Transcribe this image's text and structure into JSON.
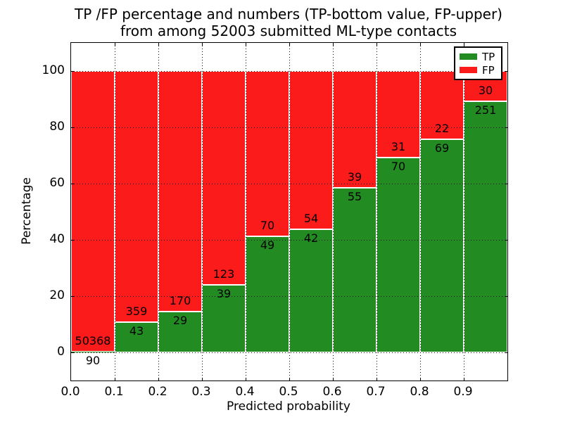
{
  "chart_data": {
    "type": "bar",
    "stacked": true,
    "units": "percent",
    "title": "TP /FP percentage and numbers (TP-bottom value, FP-upper)\nfrom among 52003 submitted ML-type contacts",
    "title_lines": [
      "TP /FP percentage and numbers (TP-bottom value, FP-upper)",
      "from among 52003 submitted ML-type contacts"
    ],
    "xlabel": "Predicted probability",
    "ylabel": "Percentage",
    "xlim": [
      0.0,
      1.0
    ],
    "ylim": [
      -10,
      110
    ],
    "x_ticks": [
      "0.0",
      "0.1",
      "0.2",
      "0.3",
      "0.4",
      "0.5",
      "0.6",
      "0.7",
      "0.8",
      "0.9"
    ],
    "y_ticks": [
      0,
      20,
      40,
      60,
      80,
      100
    ],
    "grid": {
      "style": "dotted",
      "color": "#000000",
      "over_bars": true
    },
    "colors": {
      "tp": "#228b22",
      "fp": "#fb1b1b",
      "bar_edge": "#ffffff"
    },
    "legend": {
      "position": "upper right",
      "entries": [
        {
          "label": "TP",
          "color": "#228b22"
        },
        {
          "label": "FP",
          "color": "#fb1b1b"
        }
      ]
    },
    "categories": [
      "0.0-0.1",
      "0.1-0.2",
      "0.2-0.3",
      "0.3-0.4",
      "0.4-0.5",
      "0.5-0.6",
      "0.6-0.7",
      "0.7-0.8",
      "0.8-0.9",
      "0.9-1.0"
    ],
    "series": [
      {
        "name": "TP",
        "values": [
          90,
          43,
          29,
          39,
          49,
          42,
          55,
          70,
          69,
          251
        ]
      },
      {
        "name": "FP",
        "values": [
          50368,
          359,
          170,
          123,
          70,
          54,
          39,
          31,
          22,
          30
        ]
      }
    ]
  }
}
